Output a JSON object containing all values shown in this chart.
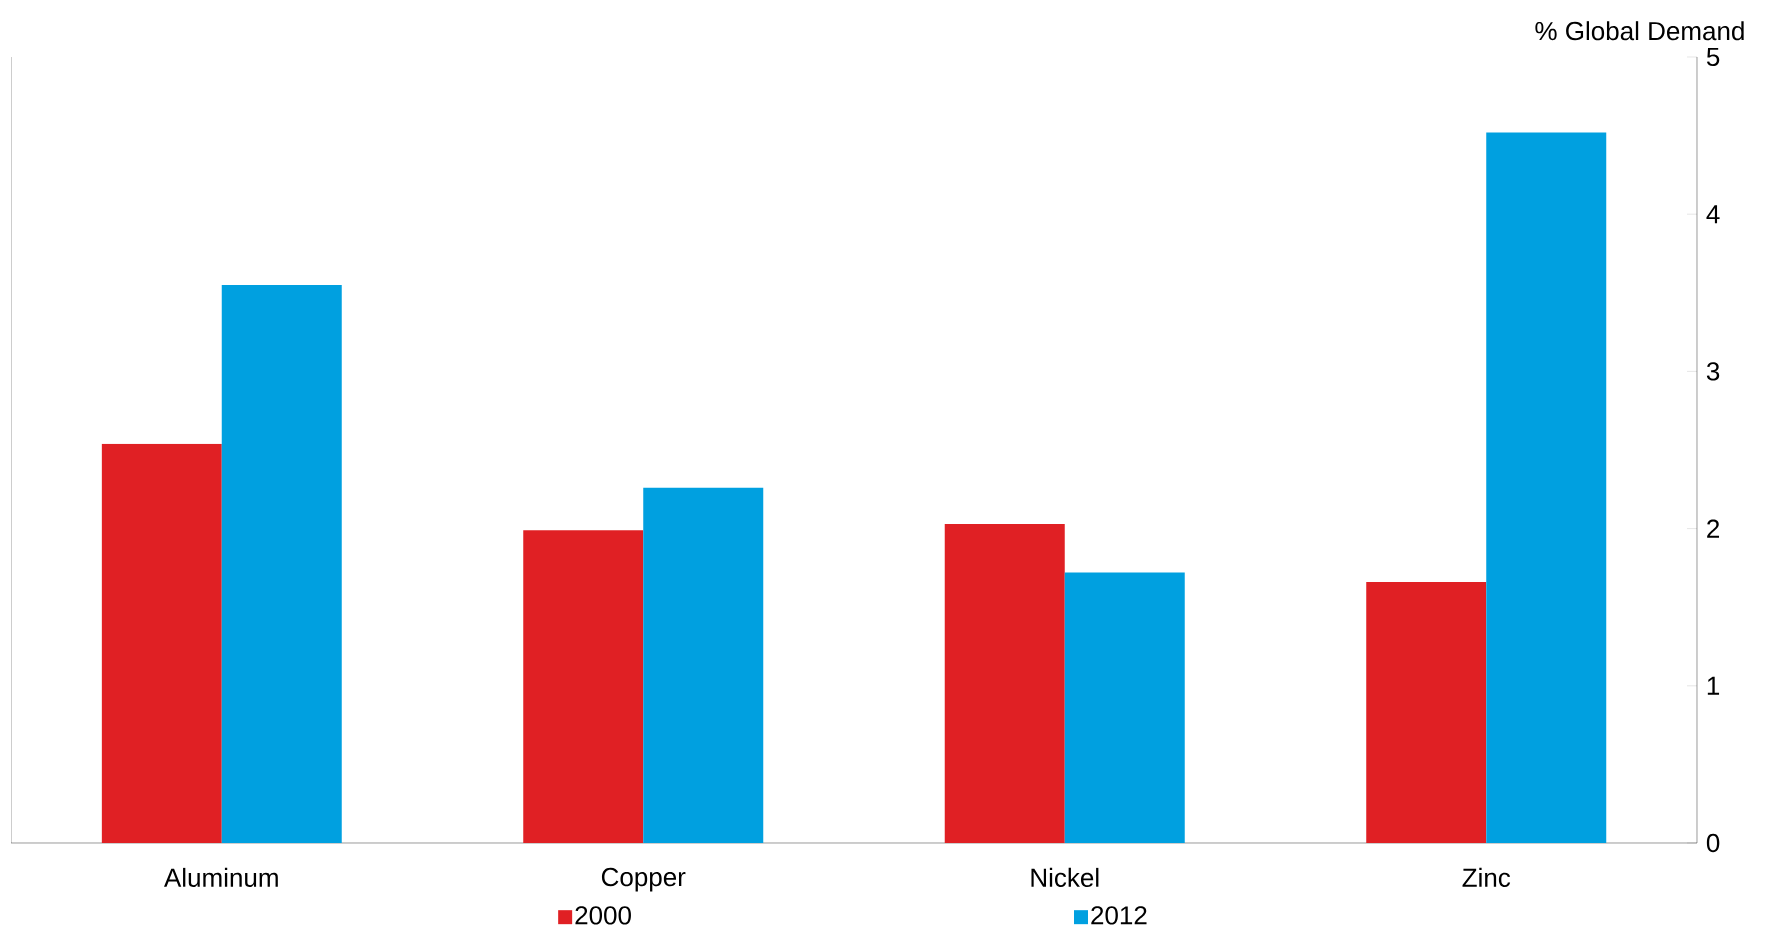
{
  "chart_data": {
    "type": "bar",
    "ylabel": "% Global Demand",
    "categories": [
      "Aluminum",
      "Copper",
      "Nickel",
      "Zinc"
    ],
    "series": [
      {
        "name": "2000",
        "color": "#e02024",
        "values": [
          2.54,
          1.99,
          2.03,
          1.66
        ]
      },
      {
        "name": "2012",
        "color": "#00a0e0",
        "values": [
          3.55,
          2.26,
          1.72,
          4.52
        ]
      }
    ],
    "ylim": [
      0,
      5
    ],
    "yticks": [
      0,
      1,
      2,
      3,
      4,
      5
    ],
    "legend": "bottom"
  }
}
